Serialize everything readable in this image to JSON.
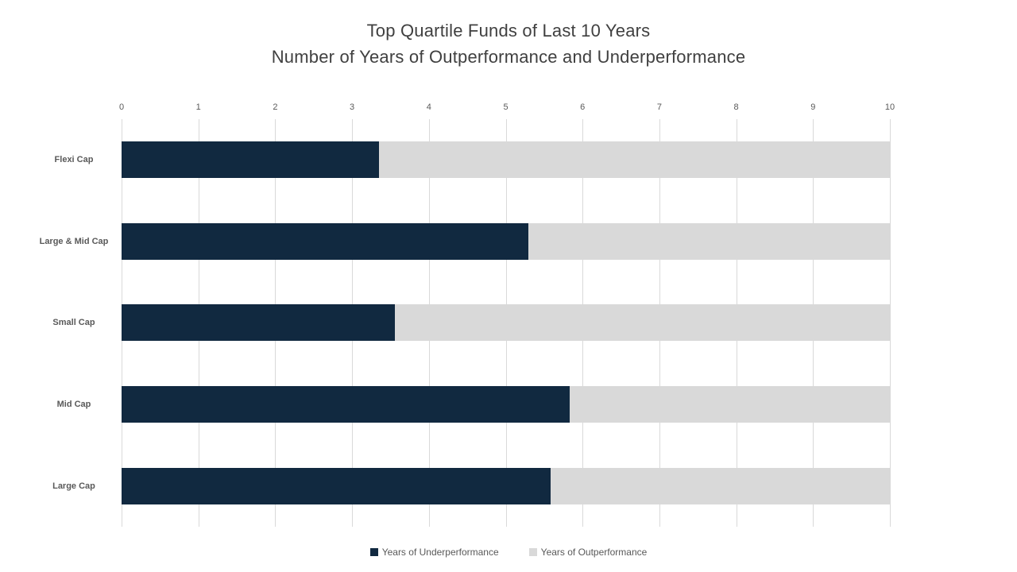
{
  "chart_data": {
    "type": "bar",
    "orientation": "horizontal",
    "stacked": true,
    "title": "Top Quartile Funds of Last 10 Years",
    "subtitle": "Number of Years of Outperformance and Underperformance",
    "categories": [
      "Flexi Cap",
      "Large & Mid Cap",
      "Small Cap",
      "Mid Cap",
      "Large Cap"
    ],
    "series": [
      {
        "name": "Years of Underperformance",
        "color": "#112940",
        "values": [
          3.35,
          5.29,
          3.56,
          5.83,
          5.58
        ]
      },
      {
        "name": "Years of Outperformance",
        "color": "#d9d9d9",
        "values": [
          6.65,
          4.71,
          6.44,
          4.17,
          4.42
        ]
      }
    ],
    "xlim": [
      0,
      10
    ],
    "xticks": [
      0,
      1,
      2,
      3,
      4,
      5,
      6,
      7,
      8,
      9,
      10
    ],
    "xlabel": "",
    "ylabel": "",
    "axis_position": "top",
    "grid": "vertical",
    "gridline_color": "#d9d9d9",
    "legend_position": "bottom",
    "title_color": "#404040",
    "label_color": "#595959",
    "background_color": "#ffffff"
  }
}
